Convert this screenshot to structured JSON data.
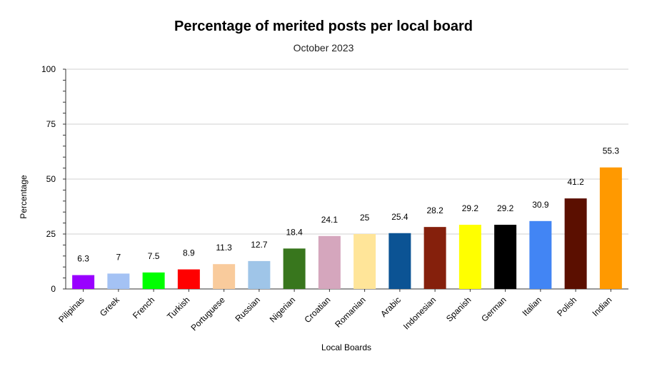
{
  "chart_data": {
    "type": "bar",
    "title": "Percentage of merited posts per local board",
    "subtitle": "October 2023",
    "xlabel": "Local Boards",
    "ylabel": "Percentage",
    "ylim": [
      0,
      100
    ],
    "yticks": [
      "0",
      "25",
      "50",
      "75",
      "100"
    ],
    "grid": true,
    "categories": [
      "Pilipinas",
      "Greek",
      "French",
      "Turkish",
      "Portuguese",
      "Russian",
      "Nigerian",
      "Croatian",
      "Romanian",
      "Arabic",
      "Indonesian",
      "Spanish",
      "German",
      "Italian",
      "Polish",
      "Indian"
    ],
    "values": [
      6.3,
      7,
      7.5,
      8.9,
      11.3,
      12.7,
      18.4,
      24.1,
      25,
      25.4,
      28.2,
      29.2,
      29.2,
      30.9,
      41.2,
      55.3
    ],
    "value_labels": [
      "6.3",
      "7",
      "7.5",
      "8.9",
      "11.3",
      "12.7",
      "18.4",
      "24.1",
      "25",
      "25.4",
      "28.2",
      "29.2",
      "29.2",
      "30.9",
      "41.2",
      "55.3"
    ],
    "colors": [
      "#9900ff",
      "#a4c2f4",
      "#00ff00",
      "#ff0000",
      "#f9cb9c",
      "#9fc5e8",
      "#38761d",
      "#d5a6bd",
      "#ffe599",
      "#0b5394",
      "#85200c",
      "#ffff00",
      "#000000",
      "#4285f4",
      "#5b0f00",
      "#ff9900"
    ]
  }
}
